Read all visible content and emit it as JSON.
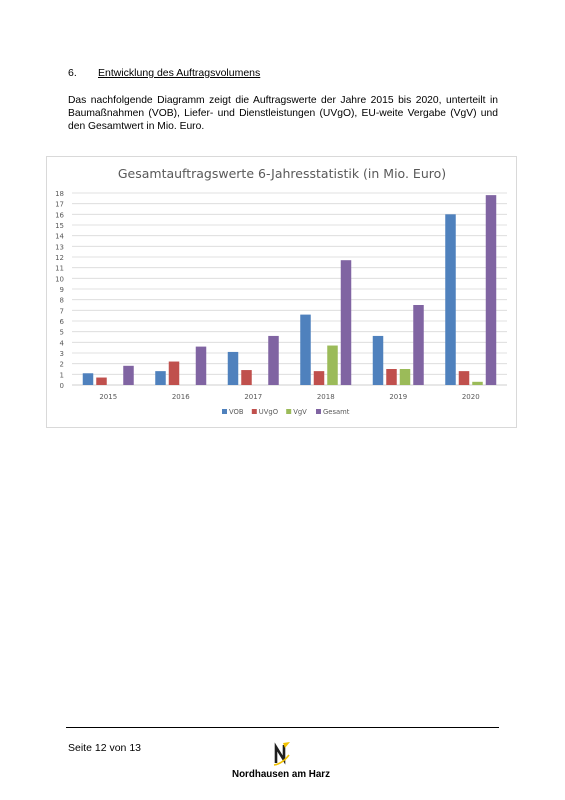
{
  "section": {
    "number": "6.",
    "title": "Entwicklung des Auftragsvolumens"
  },
  "intro_text": "Das nachfolgende Diagramm zeigt die Auftragswerte der Jahre 2015 bis 2020, unterteilt in Baumaßnahmen (VOB), Liefer- und Dienstleistungen (UVgO), EU-weite Vergabe (VgV) und den Gesamtwert in Mio. Euro.",
  "chart_data": {
    "type": "bar",
    "title": "Gesamtauftragswerte 6-Jahresstatistik (in Mio. Euro)",
    "categories": [
      "2015",
      "2016",
      "2017",
      "2018",
      "2019",
      "2020"
    ],
    "series": [
      {
        "name": "VOB",
        "color": "#4f81bd",
        "values": [
          1.1,
          1.3,
          3.1,
          6.6,
          4.6,
          16.0
        ]
      },
      {
        "name": "UVgO",
        "color": "#c0504d",
        "values": [
          0.7,
          2.2,
          1.4,
          1.3,
          1.5,
          1.3
        ]
      },
      {
        "name": "VgV",
        "color": "#9bbb59",
        "values": [
          0,
          0,
          0,
          3.7,
          1.5,
          0.3
        ]
      },
      {
        "name": "Gesamt",
        "color": "#8064a2",
        "values": [
          1.8,
          3.6,
          4.6,
          11.7,
          7.5,
          17.8
        ]
      }
    ],
    "ylim": [
      0,
      18
    ],
    "yticks": [
      0,
      1,
      2,
      3,
      4,
      5,
      6,
      7,
      8,
      9,
      10,
      11,
      12,
      13,
      14,
      15,
      16,
      17,
      18
    ],
    "grid": true,
    "legend_position": "bottom"
  },
  "footer": {
    "page_prefix": "Seite",
    "page_current": "12",
    "page_sep": "von",
    "page_total": "13",
    "town_name": "Nordhausen am Harz",
    "logo_colors": [
      "#f2c200",
      "#1f1f1f"
    ]
  }
}
